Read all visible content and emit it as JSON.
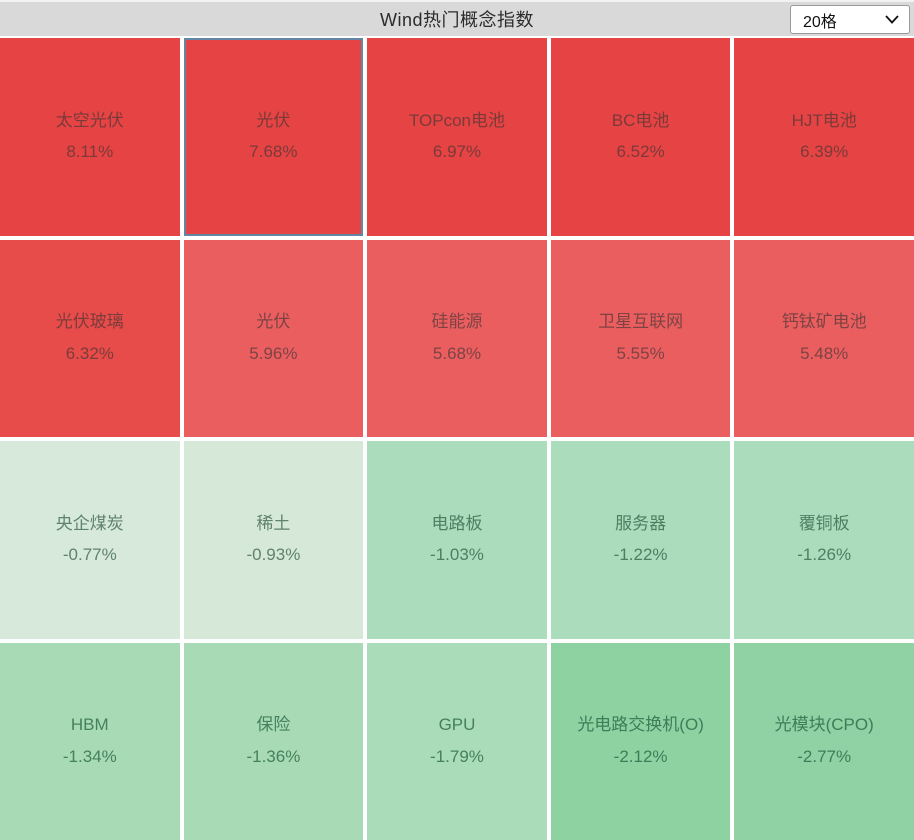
{
  "header": {
    "title": "Wind热门概念指数",
    "grid_size_value": "20格"
  },
  "colors": {
    "header_bg": "#d9d9d9",
    "selected_border": "#6286a3",
    "gain_strong": "#e64344",
    "gain_medium": "#eb5e60",
    "loss_light": "#d7e9da",
    "loss_medium": "#abdcbc",
    "loss_strong": "#8ed2a2"
  },
  "grid": {
    "columns": 5,
    "rows": 4,
    "cells": [
      {
        "name": "太空光伏",
        "change": "8.11%",
        "bg": "#e64344",
        "fg": "#7b3a38",
        "selected": false
      },
      {
        "name": "光伏",
        "change": "7.68%",
        "bg": "#e64344",
        "fg": "#7b3a38",
        "selected": true
      },
      {
        "name": "TOPcon电池",
        "change": "6.97%",
        "bg": "#e64344",
        "fg": "#7b3a38",
        "selected": false
      },
      {
        "name": "BC电池",
        "change": "6.52%",
        "bg": "#e64344",
        "fg": "#7b3a38",
        "selected": false
      },
      {
        "name": "HJT电池",
        "change": "6.39%",
        "bg": "#e64344",
        "fg": "#7b3a38",
        "selected": false
      },
      {
        "name": "光伏玻璃",
        "change": "6.32%",
        "bg": "#e74b4a",
        "fg": "#7c3c3a",
        "selected": false
      },
      {
        "name": "光伏",
        "change": "5.96%",
        "bg": "#eb5e60",
        "fg": "#7d4343",
        "selected": false
      },
      {
        "name": "硅能源",
        "change": "5.68%",
        "bg": "#eb5e60",
        "fg": "#7d4343",
        "selected": false
      },
      {
        "name": "卫星互联网",
        "change": "5.55%",
        "bg": "#eb5e60",
        "fg": "#7d4343",
        "selected": false
      },
      {
        "name": "钙钛矿电池",
        "change": "5.48%",
        "bg": "#eb5e60",
        "fg": "#7d4343",
        "selected": false
      },
      {
        "name": "央企煤炭",
        "change": "-0.77%",
        "bg": "#d7e9da",
        "fg": "#5f826c",
        "selected": false
      },
      {
        "name": "稀土",
        "change": "-0.93%",
        "bg": "#d6e9d9",
        "fg": "#5f826c",
        "selected": false
      },
      {
        "name": "电路板",
        "change": "-1.03%",
        "bg": "#abdcbc",
        "fg": "#4f7f63",
        "selected": false
      },
      {
        "name": "服务器",
        "change": "-1.22%",
        "bg": "#abdcbc",
        "fg": "#4f7f63",
        "selected": false
      },
      {
        "name": "覆铜板",
        "change": "-1.26%",
        "bg": "#abdcbc",
        "fg": "#4f7f63",
        "selected": false
      },
      {
        "name": "HBM",
        "change": "-1.34%",
        "bg": "#a8dab6",
        "fg": "#46805e",
        "selected": false
      },
      {
        "name": "保险",
        "change": "-1.36%",
        "bg": "#a8dab6",
        "fg": "#46805e",
        "selected": false
      },
      {
        "name": "GPU",
        "change": "-1.79%",
        "bg": "#aadcb9",
        "fg": "#46805e",
        "selected": false
      },
      {
        "name": "光电路交换机(O)",
        "change": "-2.12%",
        "bg": "#8ed2a2",
        "fg": "#3f7d58",
        "selected": false
      },
      {
        "name": "光模块(CPO)",
        "change": "-2.77%",
        "bg": "#90d2a3",
        "fg": "#3f7d58",
        "selected": false
      }
    ]
  },
  "chart_data": {
    "type": "heatmap",
    "title": "Wind热门概念指数",
    "categories": [
      "太空光伏",
      "光伏",
      "TOPcon电池",
      "BC电池",
      "HJT电池",
      "光伏玻璃",
      "光伏",
      "硅能源",
      "卫星互联网",
      "钙钛矿电池",
      "央企煤炭",
      "稀土",
      "电路板",
      "服务器",
      "覆铜板",
      "HBM",
      "保险",
      "GPU",
      "光电路交换机(O)",
      "光模块(CPO)"
    ],
    "values": [
      8.11,
      7.68,
      6.97,
      6.52,
      6.39,
      6.32,
      5.96,
      5.68,
      5.55,
      5.48,
      -0.77,
      -0.93,
      -1.03,
      -1.22,
      -1.26,
      -1.34,
      -1.36,
      -1.79,
      -2.12,
      -2.77
    ],
    "value_unit": "%",
    "layout": "5 columns x 4 rows, sorted descending",
    "color_rule": "red = positive change, green = negative change; intensity scales with magnitude"
  }
}
